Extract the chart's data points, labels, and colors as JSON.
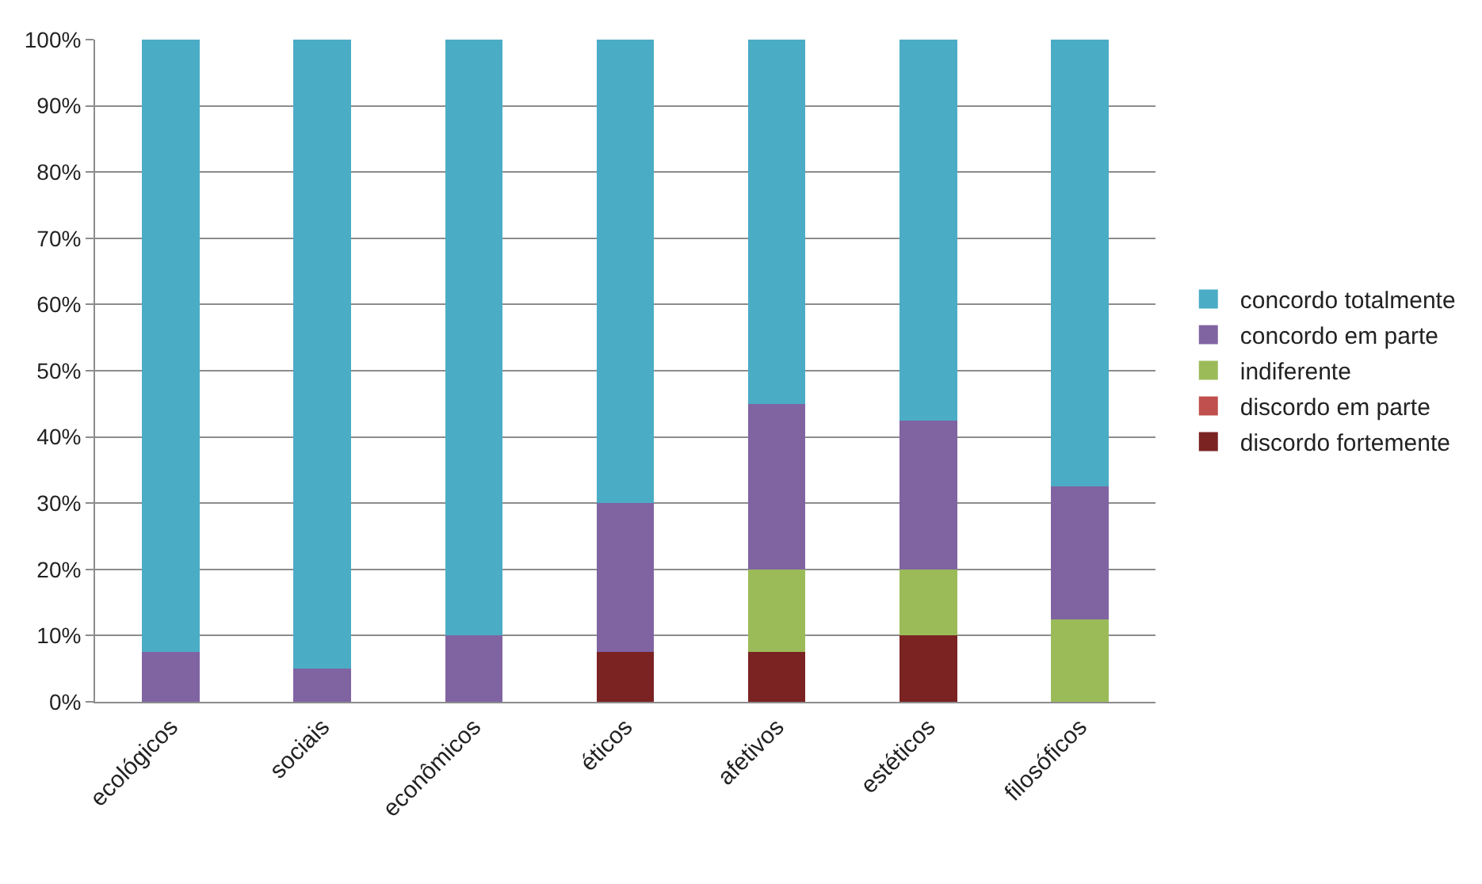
{
  "chart_data": {
    "type": "bar",
    "stacked": true,
    "categories": [
      "ecológicos",
      "sociais",
      "econômicos",
      "éticos",
      "afetivos",
      "estéticos",
      "filosóficos"
    ],
    "series": [
      {
        "name": "discordo fortemente",
        "color": "#7b2323",
        "values": [
          0,
          0,
          0,
          7.5,
          7.5,
          10,
          0
        ]
      },
      {
        "name": "discordo em parte",
        "color": "#c0504d",
        "values": [
          0,
          0,
          0,
          0,
          0,
          0,
          0
        ]
      },
      {
        "name": "indiferente",
        "color": "#9bbb59",
        "values": [
          0,
          0,
          0,
          0,
          12.5,
          10,
          12.5
        ]
      },
      {
        "name": "concordo em parte",
        "color": "#8064a2",
        "values": [
          7.5,
          5,
          10,
          22.5,
          25,
          22.5,
          20
        ]
      },
      {
        "name": "concordo totalmente",
        "color": "#4bacc6",
        "values": [
          92.5,
          95,
          90,
          70,
          55,
          57.5,
          67.5
        ]
      }
    ],
    "ylim": [
      0,
      100
    ],
    "yticks": [
      {
        "value": 0,
        "label": "0%"
      },
      {
        "value": 10,
        "label": "10%"
      },
      {
        "value": 20,
        "label": "20%"
      },
      {
        "value": 30,
        "label": "30%"
      },
      {
        "value": 40,
        "label": "40%"
      },
      {
        "value": 50,
        "label": "50%"
      },
      {
        "value": 60,
        "label": "60%"
      },
      {
        "value": 70,
        "label": "70%"
      },
      {
        "value": 80,
        "label": "80%"
      },
      {
        "value": 90,
        "label": "90%"
      },
      {
        "value": 100,
        "label": "100%"
      }
    ],
    "grid": "y",
    "legend": "right"
  }
}
